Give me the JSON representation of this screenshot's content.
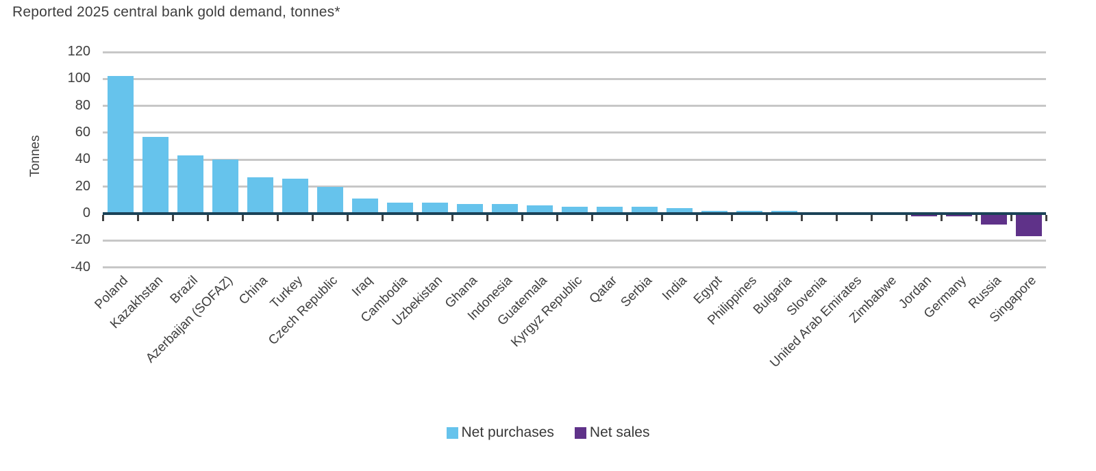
{
  "title": "Reported 2025 central bank gold demand, tonnes*",
  "chart_data": {
    "type": "bar",
    "title": "Reported 2025 central bank gold demand, tonnes*",
    "xlabel": "",
    "ylabel": "Tonnes",
    "ylim": [
      -40,
      120
    ],
    "yticks": [
      120,
      100,
      80,
      60,
      40,
      20,
      0,
      -20,
      -40
    ],
    "grid": true,
    "legend_position": "bottom-center",
    "categories": [
      "Poland",
      "Kazakhstan",
      "Brazil",
      "Azerbaijan (SOFAZ)",
      "China",
      "Turkey",
      "Czech Republic",
      "Iraq",
      "Cambodia",
      "Uzbekistan",
      "Ghana",
      "Indonesia",
      "Guatemala",
      "Kyrgyz Republic",
      "Qatar",
      "Serbia",
      "India",
      "Egypt",
      "Philippines",
      "Bulgaria",
      "Slovenia",
      "United Arab Emirates",
      "Zimbabwe",
      "Jordan",
      "Germany",
      "Russia",
      "Singapore"
    ],
    "values": [
      102,
      57,
      43,
      40,
      27,
      26,
      20,
      11,
      8,
      8,
      7,
      7,
      6,
      5,
      5,
      5,
      4,
      2,
      2,
      2,
      1,
      1,
      1,
      -1,
      -1,
      -7,
      -16
    ],
    "legend": [
      {
        "label": "Net purchases",
        "color": "#66C3EC"
      },
      {
        "label": "Net sales",
        "color": "#5F3289"
      }
    ],
    "colors": {
      "net_purchases": "#66C3EC",
      "net_sales": "#5F3289",
      "axis_line": "#1B4257",
      "gridline": "#C7C7C7",
      "text": "#3E3E3E"
    }
  }
}
